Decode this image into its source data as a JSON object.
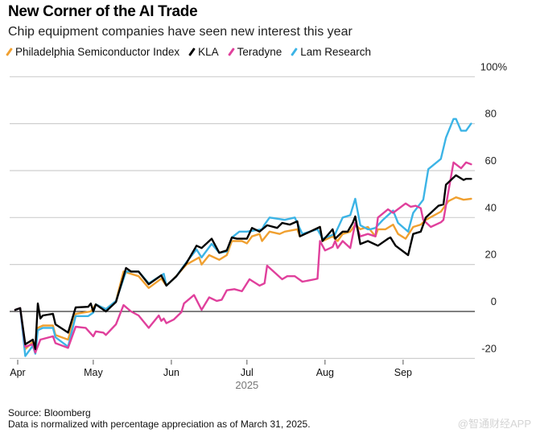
{
  "chart_data": {
    "type": "line",
    "title": "New Corner of the AI Trade",
    "subtitle": "Chip equipment companies have seen new interest this year",
    "xlabel": "2025",
    "ylabel": "",
    "x_unit": "days since April 1, 2025",
    "ylim": [
      -20,
      100
    ],
    "yticks": [
      100,
      80,
      60,
      40,
      20,
      0,
      -20
    ],
    "ytick_labels": [
      "100%",
      "80",
      "60",
      "40",
      "20",
      "0",
      "-20"
    ],
    "xticks": [
      0,
      30,
      61,
      91,
      122,
      153
    ],
    "xtick_labels": [
      "Apr",
      "May",
      "Jun",
      "Jul",
      "Aug",
      "Sep"
    ],
    "grid": true,
    "legend_position": "top-left",
    "series": [
      {
        "name": "Philadelphia Semiconductor Index",
        "color": "#f0a030",
        "points": [
          [
            -1,
            0.7
          ],
          [
            1,
            1.4
          ],
          [
            3,
            -16
          ],
          [
            6,
            -13
          ],
          [
            7,
            -17
          ],
          [
            8,
            -7
          ],
          [
            10,
            -6
          ],
          [
            14,
            -6
          ],
          [
            15,
            -10
          ],
          [
            20,
            -12
          ],
          [
            23,
            -1
          ],
          [
            29,
            0
          ],
          [
            31,
            3
          ],
          [
            35,
            1
          ],
          [
            39,
            4.5
          ],
          [
            42,
            17
          ],
          [
            48,
            15
          ],
          [
            52,
            10
          ],
          [
            57,
            14
          ],
          [
            59,
            11
          ],
          [
            62,
            14
          ],
          [
            67,
            20
          ],
          [
            72,
            23
          ],
          [
            73,
            20
          ],
          [
            76,
            24
          ],
          [
            80,
            22
          ],
          [
            83,
            24
          ],
          [
            85,
            30
          ],
          [
            89,
            30
          ],
          [
            91,
            29
          ],
          [
            93,
            32
          ],
          [
            96,
            33
          ],
          [
            97,
            30
          ],
          [
            100,
            34
          ],
          [
            104,
            33
          ],
          [
            106,
            34
          ],
          [
            111,
            35
          ],
          [
            112,
            32
          ],
          [
            120,
            36
          ],
          [
            121,
            30
          ],
          [
            125,
            32
          ],
          [
            127,
            30
          ],
          [
            129,
            33
          ],
          [
            132,
            34
          ],
          [
            134,
            37
          ],
          [
            136,
            35
          ],
          [
            139,
            36
          ],
          [
            142,
            32
          ],
          [
            143,
            35
          ],
          [
            146,
            35
          ],
          [
            149,
            37
          ],
          [
            151,
            33
          ],
          [
            154,
            31
          ],
          [
            157,
            36
          ],
          [
            160,
            37
          ],
          [
            162,
            39
          ],
          [
            168,
            42.5
          ],
          [
            171,
            47
          ],
          [
            174,
            48.6
          ],
          [
            177,
            47.6
          ],
          [
            180,
            48
          ]
        ]
      },
      {
        "name": "KLA",
        "color": "#000000",
        "points": [
          [
            -1,
            0.7
          ],
          [
            1,
            1.4
          ],
          [
            3,
            -14
          ],
          [
            6,
            -12
          ],
          [
            7,
            -16
          ],
          [
            8,
            3.4
          ],
          [
            9,
            -3
          ],
          [
            10,
            -1.7
          ],
          [
            14,
            -1
          ],
          [
            15,
            -5.5
          ],
          [
            20,
            -9
          ],
          [
            23,
            1.7
          ],
          [
            28,
            2
          ],
          [
            29,
            3.4
          ],
          [
            30,
            0
          ],
          [
            31,
            3
          ],
          [
            35,
            0
          ],
          [
            39,
            4
          ],
          [
            43,
            18.5
          ],
          [
            45,
            17
          ],
          [
            48,
            17
          ],
          [
            52,
            11.6
          ],
          [
            57,
            15.4
          ],
          [
            59,
            11
          ],
          [
            63,
            15
          ],
          [
            67,
            20.6
          ],
          [
            71,
            28
          ],
          [
            73,
            27
          ],
          [
            77,
            31
          ],
          [
            80,
            25
          ],
          [
            83,
            26
          ],
          [
            85,
            31.5
          ],
          [
            87,
            31
          ],
          [
            91,
            31
          ],
          [
            93,
            35.6
          ],
          [
            96,
            34
          ],
          [
            99,
            36.7
          ],
          [
            103,
            35.6
          ],
          [
            105,
            37.7
          ],
          [
            108,
            37
          ],
          [
            111,
            38.4
          ],
          [
            112,
            32
          ],
          [
            120,
            36
          ],
          [
            121,
            30
          ],
          [
            125,
            35
          ],
          [
            126,
            31
          ],
          [
            129,
            34
          ],
          [
            131,
            34
          ],
          [
            133,
            37.7
          ],
          [
            134,
            40.5
          ],
          [
            136,
            28.7
          ],
          [
            139,
            30
          ],
          [
            143,
            28
          ],
          [
            147,
            31
          ],
          [
            148,
            31.5
          ],
          [
            150,
            28
          ],
          [
            155,
            24
          ],
          [
            157,
            33
          ],
          [
            160,
            34
          ],
          [
            162,
            40
          ],
          [
            167,
            45
          ],
          [
            169,
            45.6
          ],
          [
            170,
            54
          ],
          [
            171,
            55
          ],
          [
            174,
            58
          ],
          [
            177,
            56
          ],
          [
            178,
            56.5
          ],
          [
            180,
            56.5
          ]
        ]
      },
      {
        "name": "Teradyne",
        "color": "#e0409c",
        "points": [
          [
            -1,
            0.7
          ],
          [
            1,
            1.4
          ],
          [
            3,
            -15
          ],
          [
            6,
            -14
          ],
          [
            7,
            -17.5
          ],
          [
            9,
            -12
          ],
          [
            14,
            -10.6
          ],
          [
            15,
            -13.5
          ],
          [
            20,
            -15.5
          ],
          [
            23,
            -6.5
          ],
          [
            27,
            -7
          ],
          [
            30,
            -10.6
          ],
          [
            31,
            -8.5
          ],
          [
            34,
            -9
          ],
          [
            35,
            -10
          ],
          [
            39,
            -5.5
          ],
          [
            42,
            2.7
          ],
          [
            45,
            0
          ],
          [
            48,
            -1.7
          ],
          [
            52,
            -7
          ],
          [
            56,
            -1.7
          ],
          [
            57,
            -4
          ],
          [
            58,
            -3
          ],
          [
            59,
            -5
          ],
          [
            62,
            -3.4
          ],
          [
            65,
            -0.3
          ],
          [
            66,
            3.4
          ],
          [
            70,
            7
          ],
          [
            73,
            0.7
          ],
          [
            76,
            6
          ],
          [
            79,
            4.5
          ],
          [
            81,
            5
          ],
          [
            83,
            9
          ],
          [
            86,
            9.5
          ],
          [
            89,
            8.6
          ],
          [
            92,
            13.7
          ],
          [
            96,
            11
          ],
          [
            98,
            12
          ],
          [
            99,
            19.5
          ],
          [
            105,
            13.7
          ],
          [
            107,
            15
          ],
          [
            110,
            15
          ],
          [
            113,
            12.7
          ],
          [
            118,
            13.7
          ],
          [
            119,
            14
          ],
          [
            120,
            30
          ],
          [
            122,
            26
          ],
          [
            125,
            27.5
          ],
          [
            126,
            30
          ],
          [
            127,
            27
          ],
          [
            129,
            30
          ],
          [
            132,
            27
          ],
          [
            134,
            37.7
          ],
          [
            136,
            32
          ],
          [
            139,
            33
          ],
          [
            142,
            32
          ],
          [
            143,
            40
          ],
          [
            147,
            43.5
          ],
          [
            149,
            42
          ],
          [
            154,
            46
          ],
          [
            156,
            44.6
          ],
          [
            158,
            45
          ],
          [
            160,
            44
          ],
          [
            161,
            39
          ],
          [
            164,
            36
          ],
          [
            168,
            38
          ],
          [
            169,
            39
          ],
          [
            173,
            63.5
          ],
          [
            176,
            61
          ],
          [
            178,
            63.5
          ],
          [
            180,
            62.7
          ]
        ]
      },
      {
        "name": "Lam Research",
        "color": "#3cb4e6",
        "points": [
          [
            -1,
            0.7
          ],
          [
            1,
            1.4
          ],
          [
            3,
            -19
          ],
          [
            6,
            -14.6
          ],
          [
            7,
            -18
          ],
          [
            8,
            -8
          ],
          [
            10,
            -7
          ],
          [
            14,
            -7
          ],
          [
            15,
            -11
          ],
          [
            20,
            -15
          ],
          [
            23,
            -2
          ],
          [
            28,
            -2
          ],
          [
            30,
            -0.5
          ],
          [
            31,
            3
          ],
          [
            35,
            1
          ],
          [
            39,
            4.5
          ],
          [
            43,
            17
          ],
          [
            48,
            17
          ],
          [
            52,
            12
          ],
          [
            58,
            16
          ],
          [
            59,
            11
          ],
          [
            63,
            15
          ],
          [
            67,
            21
          ],
          [
            71,
            26.4
          ],
          [
            73,
            23
          ],
          [
            77,
            28.8
          ],
          [
            80,
            25
          ],
          [
            83,
            25.5
          ],
          [
            85,
            31.5
          ],
          [
            88,
            34
          ],
          [
            91,
            34
          ],
          [
            97,
            35
          ],
          [
            98,
            37
          ],
          [
            100,
            40
          ],
          [
            106,
            39
          ],
          [
            110,
            40
          ],
          [
            113,
            33
          ],
          [
            119,
            35
          ],
          [
            121,
            31
          ],
          [
            126,
            33
          ],
          [
            129,
            40
          ],
          [
            132,
            41
          ],
          [
            134,
            48
          ],
          [
            136,
            36.7
          ],
          [
            139,
            35
          ],
          [
            140,
            35
          ],
          [
            142,
            35.6
          ],
          [
            145,
            39
          ],
          [
            149,
            43
          ],
          [
            151,
            37.7
          ],
          [
            155,
            34
          ],
          [
            157,
            42
          ],
          [
            161,
            47.6
          ],
          [
            163,
            60.6
          ],
          [
            168,
            65
          ],
          [
            170,
            74
          ],
          [
            173,
            82
          ],
          [
            174,
            82
          ],
          [
            176,
            77
          ],
          [
            178,
            77
          ],
          [
            180,
            80
          ]
        ]
      }
    ]
  },
  "footer": {
    "source": "Source: Bloomberg",
    "note": "Data is normalized with percentage appreciation as of March 31, 2025."
  },
  "watermark": "@智通财经APP"
}
